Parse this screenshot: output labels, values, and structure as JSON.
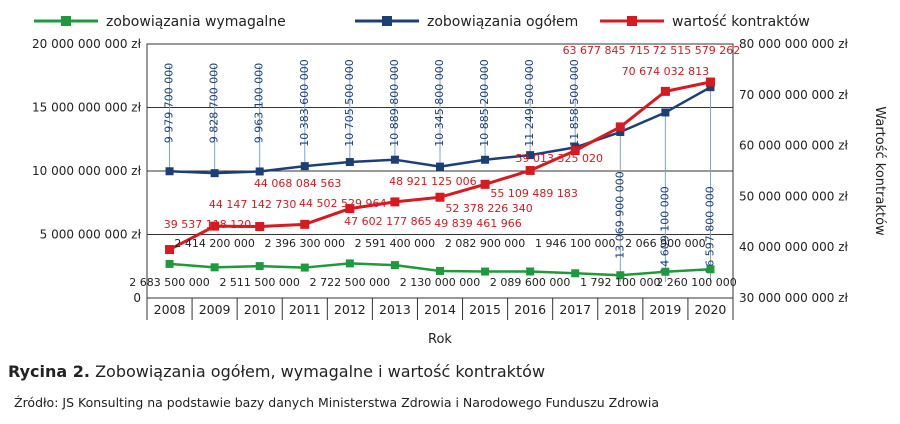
{
  "chart_data": {
    "type": "line",
    "categories": [
      "2008",
      "2009",
      "2010",
      "2011",
      "2012",
      "2013",
      "2014",
      "2015",
      "2016",
      "2017",
      "2018",
      "2019",
      "2020"
    ],
    "xlabel": "Rok",
    "y_left": {
      "ylim": [
        0,
        20000000000
      ],
      "ticks": [
        0,
        5000000000,
        10000000000,
        15000000000,
        20000000000
      ],
      "tick_labels": [
        "0",
        "5 000 000 000 zł",
        "10 000 000 000 zł",
        "15 000 000 000 zł",
        "20 000 000 000 zł"
      ]
    },
    "y_right": {
      "label": "Wartość kontraktów",
      "ylim": [
        30000000000,
        80000000000
      ],
      "ticks": [
        30000000000,
        40000000000,
        50000000000,
        60000000000,
        70000000000,
        80000000000
      ],
      "tick_labels": [
        "30 000 000 000 zł",
        "40 000 000 000 zł",
        "50 000 000 000 zł",
        "60 000 000 000 zł",
        "70 000 000 000 zł",
        "80 000 000 000 zł"
      ]
    },
    "legend_position": "top",
    "grid": "horizontal",
    "series": [
      {
        "name": "zobowiązania wymagalne",
        "axis": "left",
        "color": "#1e9a3c",
        "values": [
          2683500000,
          2414200000,
          2511500000,
          2396300000,
          2722500000,
          2591400000,
          2130000000,
          2082900000,
          2089600000,
          1946100000,
          1792100000,
          2066900000,
          2260100000
        ],
        "labels": [
          "2 683 500 000",
          "2 414 200 000",
          "2 511 500 000",
          "2 396 300 000",
          "2 722 500 000",
          "2 591 400 000",
          "2 130 000 000",
          "2 082 900 000",
          "2 089 600 000",
          "1 946 100 000",
          "1 792 100 000",
          "2 066 900 000",
          "2 260 100 000"
        ]
      },
      {
        "name": "zobowiązania ogółem",
        "axis": "left",
        "color": "#1c3f75",
        "values": [
          9979700000,
          9828700000,
          9963100000,
          10383600000,
          10705500000,
          10889800000,
          10345800000,
          10885200000,
          11249500000,
          11858500000,
          13069900000,
          14609100000,
          16597800000
        ],
        "labels": [
          "9 979 700 000",
          "9 828 700 000",
          "9 963 100 000",
          "10 383 600 000",
          "10 705 500 000",
          "10 889 800 000",
          "10 345 800 000",
          "10 885 200 000",
          "11 249 500 000",
          "11 858 500 000",
          "13 069 900 000",
          "14 609 100 000",
          "16 597 800 000"
        ]
      },
      {
        "name": "wartość kontraktów",
        "axis": "right",
        "color": "#d71920",
        "values": [
          39537118120,
          44147142730,
          44068084563,
          44502529964,
          47602177865,
          48921125006,
          49839461966,
          52378226340,
          55109489183,
          59013325020,
          63677845715,
          70674032813,
          72515579262
        ],
        "labels": [
          "39 537 118 120",
          "44 147 142 730",
          "44 068 084 563",
          "44 502 529 964",
          "47 602 177 865",
          "48 921 125 006",
          "49 839 461 966",
          "52 378 226 340",
          "55 109 489 183",
          "59 013 325 020",
          "63 677 845 715",
          "70 674 032 813",
          "72 515 579 262"
        ]
      }
    ]
  },
  "caption": {
    "prefix": "Rycina 2.",
    "text": "Zobowiązania ogółem, wymagalne i wartość kontraktów"
  },
  "source": "Źródło: JS Konsulting na podstawie bazy danych Ministerstwa Zdrowia i Narodowego Funduszu Zdrowia"
}
